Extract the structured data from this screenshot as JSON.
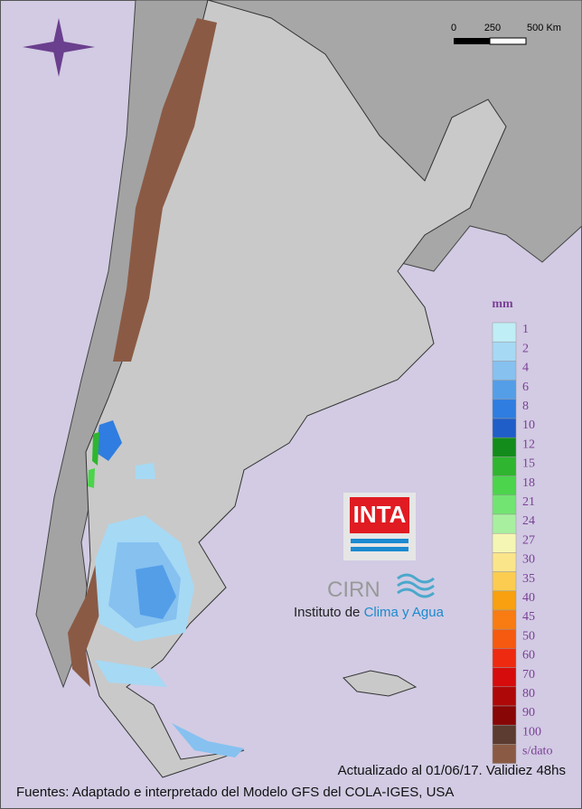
{
  "scale": {
    "labels": [
      "0",
      "250",
      "500 Km"
    ]
  },
  "legend": {
    "title": "mm",
    "items": [
      {
        "label": "1",
        "color": "#bfeef6"
      },
      {
        "label": "2",
        "color": "#a6d9f4"
      },
      {
        "label": "4",
        "color": "#86c1f0"
      },
      {
        "label": "6",
        "color": "#549ee8"
      },
      {
        "label": "8",
        "color": "#2f7de0"
      },
      {
        "label": "10",
        "color": "#1f5ec8"
      },
      {
        "label": "12",
        "color": "#138c1c"
      },
      {
        "label": "15",
        "color": "#2fb52f"
      },
      {
        "label": "18",
        "color": "#4cd44c"
      },
      {
        "label": "21",
        "color": "#72e472"
      },
      {
        "label": "24",
        "color": "#a8f0a0"
      },
      {
        "label": "27",
        "color": "#f6f6b4"
      },
      {
        "label": "30",
        "color": "#fbe58a"
      },
      {
        "label": "35",
        "color": "#fbcc50"
      },
      {
        "label": "40",
        "color": "#f8a010"
      },
      {
        "label": "45",
        "color": "#f87c12"
      },
      {
        "label": "50",
        "color": "#f55a10"
      },
      {
        "label": "60",
        "color": "#ee2a10"
      },
      {
        "label": "70",
        "color": "#d60c0c"
      },
      {
        "label": "80",
        "color": "#ae0808"
      },
      {
        "label": "90",
        "color": "#880606"
      },
      {
        "label": "100",
        "color": "#5c3b30"
      },
      {
        "label": "s/dato",
        "color": "#8b5a45"
      }
    ]
  },
  "logo": {
    "inta": "INTA",
    "cirn": "CIRN",
    "institute": "Instituto de",
    "institute_highlight": "Clima y Agua"
  },
  "footer": {
    "updated": "Actualizado al 01/06/17. Validiez 48hs",
    "sources": "Fuentes: Adaptado e interpretado del Modelo GFS del COLA-IGES, USA"
  }
}
